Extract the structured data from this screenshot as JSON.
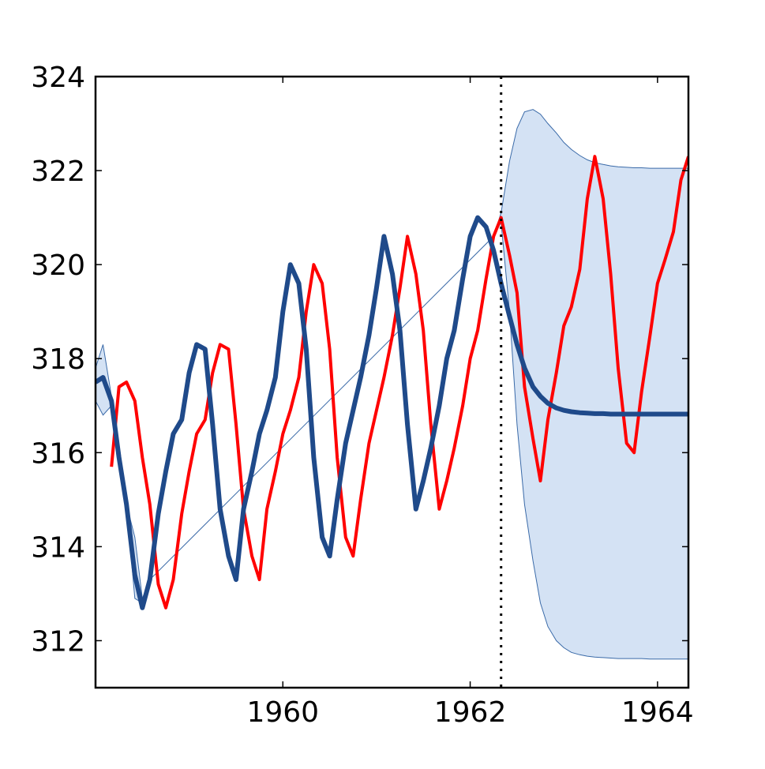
{
  "chart_data": {
    "type": "line",
    "title": "",
    "xlabel": "",
    "ylabel": "",
    "xlim": [
      1958.0,
      1964.33
    ],
    "ylim": [
      311.0,
      324.0
    ],
    "x_ticks": [
      {
        "value": 1960,
        "label": "1960"
      },
      {
        "value": 1962,
        "label": "1962"
      },
      {
        "value": 1964,
        "label": "1964"
      }
    ],
    "y_ticks": [
      {
        "value": 312,
        "label": "312"
      },
      {
        "value": 314,
        "label": "314"
      },
      {
        "value": 316,
        "label": "316"
      },
      {
        "value": 318,
        "label": "318"
      },
      {
        "value": 320,
        "label": "320"
      },
      {
        "value": 322,
        "label": "322"
      },
      {
        "value": 324,
        "label": "324"
      }
    ],
    "grid": false,
    "forecast_start": 1962.33,
    "series": [
      {
        "role": "observed",
        "color": "#ff0000",
        "x": [
          1958.17,
          1958.25,
          1958.33,
          1958.42,
          1958.5,
          1958.58,
          1958.67,
          1958.75,
          1958.83,
          1958.92,
          1959.0,
          1959.08,
          1959.17,
          1959.25,
          1959.33,
          1959.42,
          1959.5,
          1959.58,
          1959.67,
          1959.75,
          1959.83,
          1959.92,
          1960.0,
          1960.08,
          1960.17,
          1960.25,
          1960.33,
          1960.42,
          1960.5,
          1960.58,
          1960.67,
          1960.75,
          1960.83,
          1960.92,
          1961.0,
          1961.08,
          1961.17,
          1961.25,
          1961.33,
          1961.42,
          1961.5,
          1961.58,
          1961.67,
          1961.75,
          1961.83,
          1961.92,
          1962.0,
          1962.08,
          1962.17,
          1962.25,
          1962.33,
          1962.42,
          1962.5,
          1962.58,
          1962.67,
          1962.75,
          1962.83,
          1962.92,
          1963.0,
          1963.08,
          1963.17,
          1963.25,
          1963.33,
          1963.42,
          1963.5,
          1963.58,
          1963.67,
          1963.75,
          1963.83,
          1963.92,
          1964.0,
          1964.08,
          1964.17,
          1964.25,
          1964.33
        ],
        "y": [
          315.7,
          317.4,
          317.5,
          317.1,
          315.9,
          314.9,
          313.2,
          312.7,
          313.3,
          314.7,
          315.6,
          316.4,
          316.7,
          317.7,
          318.3,
          318.2,
          316.6,
          314.8,
          313.8,
          313.3,
          314.8,
          315.6,
          316.4,
          316.9,
          317.6,
          319.0,
          320.0,
          319.6,
          318.2,
          315.9,
          314.2,
          313.8,
          315.0,
          316.2,
          316.9,
          317.6,
          318.5,
          319.5,
          320.6,
          319.8,
          318.6,
          316.6,
          314.8,
          315.4,
          316.1,
          317.0,
          318.0,
          318.6,
          319.7,
          320.6,
          321.0,
          320.2,
          319.4,
          317.4,
          316.3,
          315.4,
          316.7,
          317.7,
          318.7,
          319.1,
          319.9,
          321.4,
          322.3,
          321.4,
          319.8,
          317.8,
          316.2,
          316.0,
          317.3,
          318.5,
          319.6,
          320.1,
          320.7,
          321.8,
          322.3
        ]
      },
      {
        "role": "prediction",
        "color": "#1f4a8a",
        "x": [
          1958.0,
          1958.08,
          1958.17,
          1958.25,
          1958.33,
          1958.42,
          1958.5,
          1958.58,
          1958.67,
          1958.75,
          1958.83,
          1958.92,
          1959.0,
          1959.08,
          1959.17,
          1959.25,
          1959.33,
          1959.42,
          1959.5,
          1959.58,
          1959.67,
          1959.75,
          1959.83,
          1959.92,
          1960.0,
          1960.08,
          1960.17,
          1960.25,
          1960.33,
          1960.42,
          1960.5,
          1960.58,
          1960.67,
          1960.75,
          1960.83,
          1960.92,
          1961.0,
          1961.08,
          1961.17,
          1961.25,
          1961.33,
          1961.42,
          1961.5,
          1961.58,
          1961.67,
          1961.75,
          1961.83,
          1961.92,
          1962.0,
          1962.08,
          1962.17,
          1962.25,
          1962.33,
          1962.42,
          1962.5,
          1962.58,
          1962.67,
          1962.75,
          1962.83,
          1962.92,
          1963.0,
          1963.08,
          1963.17,
          1963.25,
          1963.33,
          1963.42,
          1963.5,
          1963.58,
          1963.67,
          1963.75,
          1963.83,
          1963.92,
          1964.0,
          1964.08,
          1964.17,
          1964.25,
          1964.33
        ],
        "y": [
          317.5,
          317.6,
          317.1,
          315.9,
          314.9,
          313.4,
          312.7,
          313.3,
          314.7,
          315.6,
          316.4,
          316.7,
          317.7,
          318.3,
          318.2,
          316.6,
          314.8,
          313.8,
          313.3,
          314.8,
          315.6,
          316.4,
          316.9,
          317.6,
          319.0,
          320.0,
          319.6,
          318.2,
          315.9,
          314.2,
          313.8,
          315.0,
          316.2,
          316.9,
          317.6,
          318.5,
          319.5,
          320.6,
          319.8,
          318.6,
          316.6,
          314.8,
          315.4,
          316.1,
          317.0,
          318.0,
          318.6,
          319.7,
          320.6,
          321.0,
          320.8,
          320.3,
          319.6,
          318.9,
          318.3,
          317.8,
          317.4,
          317.2,
          317.05,
          316.95,
          316.9,
          316.87,
          316.85,
          316.84,
          316.83,
          316.83,
          316.82,
          316.82,
          316.82,
          316.82,
          316.82,
          316.82,
          316.82,
          316.82,
          316.82,
          316.82,
          316.82
        ]
      }
    ],
    "interval": {
      "color": "#d4e2f4",
      "edge_color": "#3a6aa8",
      "x": [
        1958.0,
        1958.08,
        1958.17,
        1958.25,
        1958.33,
        1958.42,
        1958.5,
        1958.58,
        1962.25,
        1962.33,
        1962.42,
        1962.5,
        1962.58,
        1962.67,
        1962.75,
        1962.83,
        1962.92,
        1963.0,
        1963.08,
        1963.17,
        1963.25,
        1963.33,
        1963.42,
        1963.5,
        1963.58,
        1963.67,
        1963.75,
        1963.83,
        1963.92,
        1964.0,
        1964.08,
        1964.17,
        1964.25,
        1964.33
      ],
      "upper": [
        317.8,
        318.3,
        317.2,
        315.9,
        314.9,
        314.2,
        312.9,
        313.3,
        320.6,
        321.1,
        322.2,
        322.9,
        323.25,
        323.3,
        323.2,
        323.0,
        322.8,
        322.6,
        322.45,
        322.32,
        322.23,
        322.17,
        322.13,
        322.1,
        322.08,
        322.07,
        322.06,
        322.06,
        322.05,
        322.05,
        322.05,
        322.05,
        322.05,
        322.05
      ],
      "lower": [
        317.1,
        316.8,
        317.0,
        315.9,
        314.9,
        312.9,
        312.8,
        313.3,
        320.6,
        320.9,
        319.0,
        316.6,
        314.9,
        313.7,
        312.8,
        312.3,
        312.0,
        311.85,
        311.75,
        311.7,
        311.67,
        311.65,
        311.64,
        311.63,
        311.62,
        311.62,
        311.62,
        311.62,
        311.61,
        311.61,
        311.61,
        311.61,
        311.61,
        311.61
      ]
    }
  }
}
